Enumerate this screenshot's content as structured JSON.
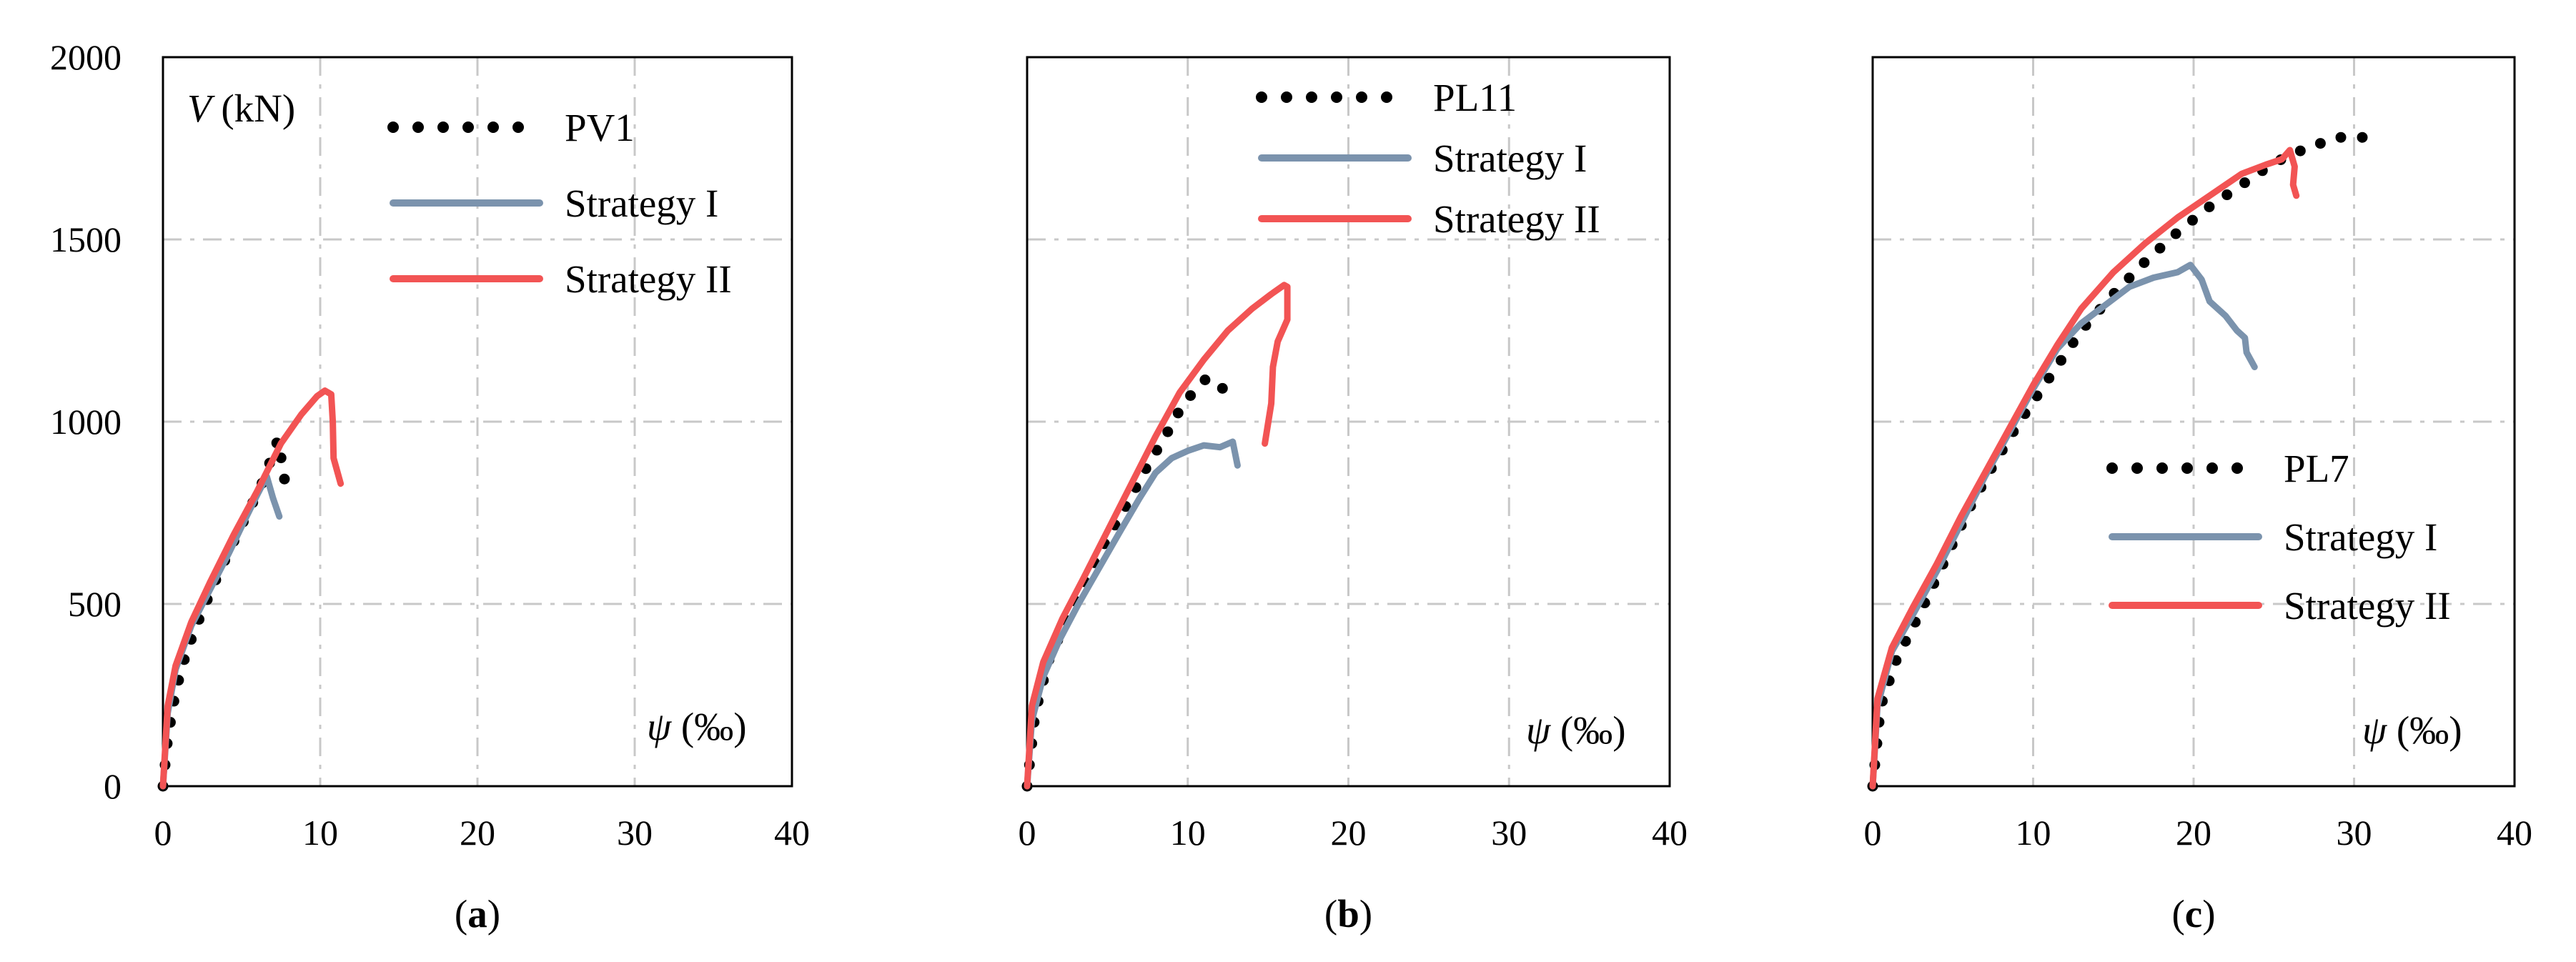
{
  "chart_data": [
    {
      "type": "line",
      "panel_label": "a",
      "xlabel": "ψ (‰)",
      "ylabel": "V (kN)",
      "ylabel_symbol": "V",
      "ylabel_unit": "(kN)",
      "xlabel_symbol": "ψ",
      "xlabel_unit": "(‰)",
      "xlim": [
        0,
        40
      ],
      "ylim": [
        0,
        2000
      ],
      "xticks": [
        0,
        10,
        20,
        30,
        40
      ],
      "yticks": [
        0,
        500,
        1000,
        1500,
        2000
      ],
      "show_yticks": true,
      "show_ylabel": true,
      "legend_position": "top-right",
      "series": [
        {
          "name": "PV1",
          "style": "dotted",
          "color": "#000000",
          "points": [
            [
              0,
              0
            ],
            [
              0.3,
              130
            ],
            [
              0.8,
              260
            ],
            [
              1.5,
              370
            ],
            [
              2.5,
              480
            ],
            [
              3.5,
              580
            ],
            [
              4.6,
              680
            ],
            [
              5.5,
              760
            ],
            [
              6.2,
              820
            ],
            [
              6.9,
              900
            ],
            [
              7.3,
              950
            ],
            [
              7.6,
              880
            ],
            [
              7.8,
              820
            ]
          ]
        },
        {
          "name": "Strategy I",
          "style": "solid",
          "color": "#7b93ad",
          "points": [
            [
              0,
              0
            ],
            [
              0.3,
              200
            ],
            [
              0.8,
              320
            ],
            [
              1.8,
              440
            ],
            [
              3,
              540
            ],
            [
              4.2,
              640
            ],
            [
              5.2,
              730
            ],
            [
              6,
              800
            ],
            [
              6.6,
              850
            ],
            [
              7,
              790
            ],
            [
              7.4,
              740
            ]
          ]
        },
        {
          "name": "Strategy II",
          "style": "solid",
          "color": "#f25454",
          "points": [
            [
              0,
              0
            ],
            [
              0.3,
              220
            ],
            [
              0.8,
              330
            ],
            [
              1.8,
              450
            ],
            [
              3,
              560
            ],
            [
              4.5,
              690
            ],
            [
              6,
              810
            ],
            [
              7.5,
              940
            ],
            [
              8.8,
              1020
            ],
            [
              9.8,
              1070
            ],
            [
              10.3,
              1085
            ],
            [
              10.7,
              1075
            ],
            [
              10.8,
              1000
            ],
            [
              10.85,
              900
            ],
            [
              11.3,
              830
            ]
          ]
        }
      ]
    },
    {
      "type": "line",
      "panel_label": "b",
      "xlabel": "ψ (‰)",
      "xlabel_symbol": "ψ",
      "xlabel_unit": "(‰)",
      "xlim": [
        0,
        40
      ],
      "ylim": [
        0,
        2000
      ],
      "xticks": [
        0,
        10,
        20,
        30,
        40
      ],
      "yticks": [
        0,
        500,
        1000,
        1500,
        2000
      ],
      "show_yticks": false,
      "show_ylabel": false,
      "legend_position": "top",
      "series": [
        {
          "name": "PL11",
          "style": "dotted",
          "color": "#000000",
          "points": [
            [
              0,
              0
            ],
            [
              0.5,
              200
            ],
            [
              1.3,
              340
            ],
            [
              2.5,
              460
            ],
            [
              3.8,
              580
            ],
            [
              5,
              680
            ],
            [
              6.3,
              780
            ],
            [
              7.5,
              880
            ],
            [
              8.6,
              960
            ],
            [
              9.6,
              1040
            ],
            [
              10.5,
              1090
            ],
            [
              11.2,
              1120
            ],
            [
              11.8,
              1105
            ],
            [
              12.2,
              1090
            ]
          ]
        },
        {
          "name": "Strategy I",
          "style": "solid",
          "color": "#7b93ad",
          "points": [
            [
              0,
              0
            ],
            [
              0.3,
              180
            ],
            [
              1,
              300
            ],
            [
              2,
              400
            ],
            [
              3.2,
              500
            ],
            [
              4.5,
              600
            ],
            [
              5.8,
              700
            ],
            [
              7,
              790
            ],
            [
              8,
              860
            ],
            [
              9,
              900
            ],
            [
              10,
              920
            ],
            [
              11,
              935
            ],
            [
              12,
              930
            ],
            [
              12.8,
              945
            ],
            [
              13.1,
              880
            ]
          ]
        },
        {
          "name": "Strategy II",
          "style": "solid",
          "color": "#f25454",
          "points": [
            [
              0,
              0
            ],
            [
              0.3,
              220
            ],
            [
              1,
              340
            ],
            [
              2.2,
              460
            ],
            [
              3.5,
              570
            ],
            [
              5,
              700
            ],
            [
              6.5,
              830
            ],
            [
              8,
              960
            ],
            [
              9.5,
              1080
            ],
            [
              11,
              1170
            ],
            [
              12.5,
              1250
            ],
            [
              14,
              1310
            ],
            [
              15.2,
              1350
            ],
            [
              16,
              1375
            ],
            [
              16.2,
              1370
            ],
            [
              16.2,
              1280
            ],
            [
              15.6,
              1220
            ],
            [
              15.3,
              1150
            ],
            [
              15.2,
              1050
            ],
            [
              14.8,
              940
            ]
          ]
        }
      ]
    },
    {
      "type": "line",
      "panel_label": "c",
      "xlabel": "ψ (‰)",
      "xlabel_symbol": "ψ",
      "xlabel_unit": "(‰)",
      "xlim": [
        0,
        40
      ],
      "ylim": [
        0,
        2000
      ],
      "xticks": [
        0,
        10,
        20,
        30,
        40
      ],
      "yticks": [
        0,
        500,
        1000,
        1500,
        2000
      ],
      "show_yticks": false,
      "show_ylabel": false,
      "legend_position": "center-right",
      "series": [
        {
          "name": "PL7",
          "style": "dotted",
          "color": "#000000",
          "points": [
            [
              0,
              0
            ],
            [
              0.5,
              220
            ],
            [
              1.5,
              350
            ],
            [
              3,
              480
            ],
            [
              4.5,
              620
            ],
            [
              6,
              760
            ],
            [
              7.5,
              880
            ],
            [
              9,
              990
            ],
            [
              11,
              1120
            ],
            [
              13,
              1250
            ],
            [
              15,
              1350
            ],
            [
              17,
              1440
            ],
            [
              19,
              1520
            ],
            [
              21,
              1590
            ],
            [
              23,
              1650
            ],
            [
              25,
              1710
            ],
            [
              27,
              1750
            ],
            [
              29,
              1780
            ],
            [
              30.5,
              1780
            ],
            [
              31.5,
              1775
            ]
          ]
        },
        {
          "name": "Strategy I",
          "style": "solid",
          "color": "#7b93ad",
          "points": [
            [
              0,
              0
            ],
            [
              0.3,
              220
            ],
            [
              1.2,
              370
            ],
            [
              2.5,
              470
            ],
            [
              4,
              590
            ],
            [
              5.5,
              720
            ],
            [
              7,
              850
            ],
            [
              8.5,
              970
            ],
            [
              10,
              1090
            ],
            [
              11.5,
              1200
            ],
            [
              13,
              1270
            ],
            [
              14.5,
              1320
            ],
            [
              16,
              1370
            ],
            [
              17.5,
              1395
            ],
            [
              19,
              1410
            ],
            [
              19.8,
              1430
            ],
            [
              20.5,
              1390
            ],
            [
              21,
              1330
            ],
            [
              22,
              1290
            ],
            [
              22.7,
              1250
            ],
            [
              23.2,
              1230
            ],
            [
              23.3,
              1190
            ],
            [
              23.8,
              1150
            ]
          ]
        },
        {
          "name": "Strategy II",
          "style": "solid",
          "color": "#f25454",
          "points": [
            [
              0,
              0
            ],
            [
              0.3,
              240
            ],
            [
              1.2,
              380
            ],
            [
              2.5,
              490
            ],
            [
              4,
              610
            ],
            [
              5.5,
              740
            ],
            [
              7,
              860
            ],
            [
              8.5,
              980
            ],
            [
              10,
              1100
            ],
            [
              11.5,
              1210
            ],
            [
              13,
              1310
            ],
            [
              15,
              1410
            ],
            [
              17,
              1490
            ],
            [
              19,
              1560
            ],
            [
              21,
              1620
            ],
            [
              23,
              1680
            ],
            [
              24.5,
              1705
            ],
            [
              25.5,
              1720
            ],
            [
              26,
              1745
            ],
            [
              26.3,
              1700
            ],
            [
              26.2,
              1650
            ],
            [
              26.4,
              1620
            ]
          ]
        }
      ]
    }
  ]
}
